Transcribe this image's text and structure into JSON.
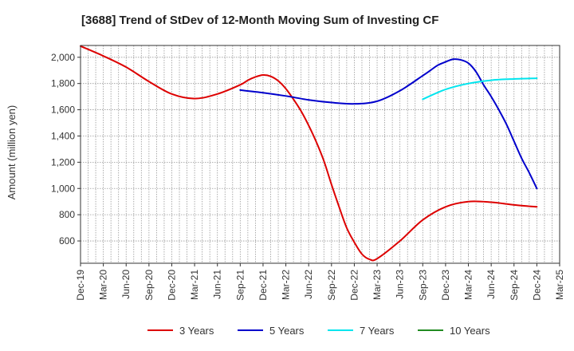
{
  "chart_data": {
    "type": "line",
    "title": "[3688]  Trend of StDev of 12-Month Moving Sum of Investing CF",
    "xlabel": "",
    "ylabel": "Amount (million yen)",
    "x_ticks": [
      "Dec-19",
      "Mar-20",
      "Jun-20",
      "Sep-20",
      "Dec-20",
      "Mar-21",
      "Jun-21",
      "Sep-21",
      "Dec-21",
      "Mar-22",
      "Jun-22",
      "Sep-22",
      "Dec-22",
      "Mar-23",
      "Jun-23",
      "Sep-23",
      "Dec-23",
      "Mar-24",
      "Jun-24",
      "Sep-24",
      "Dec-24",
      "Mar-25"
    ],
    "y_ticks": [
      600,
      800,
      1000,
      1200,
      1400,
      1600,
      1800,
      2000
    ],
    "y_tick_labels": [
      "600",
      "800",
      "1,000",
      "1,200",
      "1,400",
      "1,600",
      "1,800",
      "2,000"
    ],
    "ylim": [
      430,
      2090
    ],
    "grid": true,
    "legend_position": "bottom",
    "series": [
      {
        "name": "3 Years",
        "color": "#dd0000",
        "points": [
          [
            "Dec-19",
            2085
          ],
          [
            "Mar-20",
            2010
          ],
          [
            "Jun-20",
            1925
          ],
          [
            "Sep-20",
            1815
          ],
          [
            "Dec-20",
            1720
          ],
          [
            "Mar-21",
            1685
          ],
          [
            "Jun-21",
            1720
          ],
          [
            "Sep-21",
            1790
          ],
          [
            "Oct-21",
            1825
          ],
          [
            "Nov-21",
            1850
          ],
          [
            "Dec-21",
            1865
          ],
          [
            "Jan-22",
            1855
          ],
          [
            "Feb-22",
            1820
          ],
          [
            "Mar-22",
            1760
          ],
          [
            "Apr-22",
            1680
          ],
          [
            "May-22",
            1590
          ],
          [
            "Jun-22",
            1480
          ],
          [
            "Jul-22",
            1355
          ],
          [
            "Aug-22",
            1210
          ],
          [
            "Sep-22",
            1030
          ],
          [
            "Oct-22",
            860
          ],
          [
            "Nov-22",
            700
          ],
          [
            "Dec-22",
            590
          ],
          [
            "Jan-23",
            500
          ],
          [
            "Feb-23",
            460
          ],
          [
            "Mar-23",
            465
          ],
          [
            "Jun-23",
            600
          ],
          [
            "Sep-23",
            760
          ],
          [
            "Dec-23",
            860
          ],
          [
            "Mar-24",
            900
          ],
          [
            "Jun-24",
            895
          ],
          [
            "Sep-24",
            875
          ],
          [
            "Dec-24",
            860
          ]
        ]
      },
      {
        "name": "5 Years",
        "color": "#0000cc",
        "points": [
          [
            "Sep-21",
            1750
          ],
          [
            "Dec-21",
            1730
          ],
          [
            "Mar-22",
            1705
          ],
          [
            "Jun-22",
            1675
          ],
          [
            "Sep-22",
            1655
          ],
          [
            "Dec-22",
            1645
          ],
          [
            "Mar-23",
            1665
          ],
          [
            "Jun-23",
            1745
          ],
          [
            "Sep-23",
            1860
          ],
          [
            "Oct-23",
            1900
          ],
          [
            "Nov-23",
            1940
          ],
          [
            "Dec-23",
            1965
          ],
          [
            "Jan-24",
            1985
          ],
          [
            "Feb-24",
            1980
          ],
          [
            "Mar-24",
            1955
          ],
          [
            "Apr-24",
            1890
          ],
          [
            "May-24",
            1790
          ],
          [
            "Jun-24",
            1700
          ],
          [
            "Jul-24",
            1600
          ],
          [
            "Aug-24",
            1490
          ],
          [
            "Sep-24",
            1360
          ],
          [
            "Oct-24",
            1230
          ],
          [
            "Nov-24",
            1120
          ],
          [
            "Dec-24",
            1000
          ]
        ]
      },
      {
        "name": "7 Years",
        "color": "#00e5ee",
        "points": [
          [
            "Sep-23",
            1680
          ],
          [
            "Dec-23",
            1755
          ],
          [
            "Mar-24",
            1800
          ],
          [
            "Jun-24",
            1825
          ],
          [
            "Sep-24",
            1835
          ],
          [
            "Dec-24",
            1840
          ]
        ]
      },
      {
        "name": "10 Years",
        "color": "#228b22",
        "points": []
      }
    ]
  }
}
